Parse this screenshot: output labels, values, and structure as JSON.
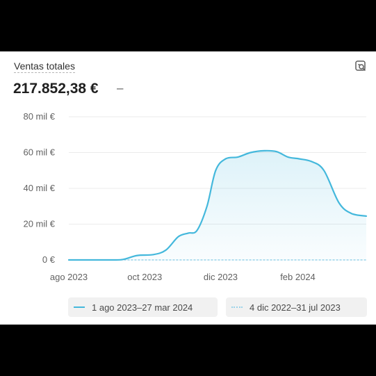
{
  "card": {
    "title": "Ventas totales",
    "total": "217.852,38 €",
    "change": "–",
    "action_icon": "chart-search-icon"
  },
  "chart_data": {
    "type": "area",
    "y_axis": {
      "ticks": [
        "80 mil €",
        "60 mil €",
        "40 mil €",
        "20 mil €",
        "0 €"
      ],
      "tick_values": [
        80000,
        60000,
        40000,
        20000,
        0
      ],
      "range": [
        0,
        80000
      ]
    },
    "x_axis": {
      "ticks": [
        "ago 2023",
        "oct 2023",
        "dic 2023",
        "feb 2024"
      ],
      "tick_dates": [
        "2023-08-01",
        "2023-10-01",
        "2023-12-01",
        "2024-02-01"
      ],
      "range": [
        "2023-08-01",
        "2024-03-27"
      ]
    },
    "grid": true,
    "series": [
      {
        "name": "1 ago 2023–27 mar 2024",
        "color": "#44b8dc",
        "style": "solid",
        "fill": true,
        "points": [
          [
            "2023-08-01",
            0
          ],
          [
            "2023-08-20",
            0
          ],
          [
            "2023-09-08",
            0
          ],
          [
            "2023-09-15",
            500
          ],
          [
            "2023-09-25",
            2500
          ],
          [
            "2023-10-08",
            3000
          ],
          [
            "2023-10-18",
            5500
          ],
          [
            "2023-10-28",
            13000
          ],
          [
            "2023-11-05",
            15000
          ],
          [
            "2023-11-12",
            16500
          ],
          [
            "2023-11-20",
            30000
          ],
          [
            "2023-11-27",
            50000
          ],
          [
            "2023-12-05",
            56500
          ],
          [
            "2023-12-15",
            57500
          ],
          [
            "2023-12-25",
            60000
          ],
          [
            "2024-01-05",
            61000
          ],
          [
            "2024-01-15",
            60500
          ],
          [
            "2024-01-24",
            57500
          ],
          [
            "2024-02-02",
            56500
          ],
          [
            "2024-02-12",
            55000
          ],
          [
            "2024-02-22",
            50000
          ],
          [
            "2024-03-05",
            32000
          ],
          [
            "2024-03-15",
            26000
          ],
          [
            "2024-03-27",
            24500
          ]
        ]
      },
      {
        "name": "4 dic 2022–31 jul 2023",
        "color": "#9ad3ea",
        "style": "dotted",
        "fill": false,
        "points": [
          [
            "2023-08-01",
            0
          ],
          [
            "2024-03-27",
            0
          ]
        ]
      }
    ]
  }
}
